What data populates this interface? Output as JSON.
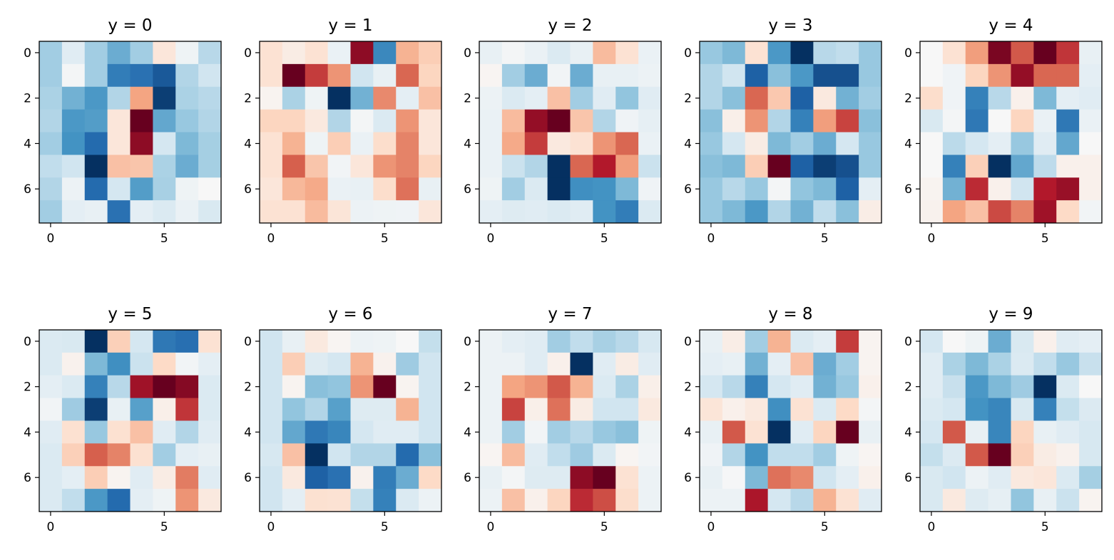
{
  "chart_data": {
    "type": "heatmap",
    "colormap": "RdBu_r",
    "value_range": [
      -1,
      1
    ],
    "xticks": [
      0,
      5
    ],
    "yticks": [
      0,
      2,
      4,
      6
    ],
    "panels": [
      {
        "title": "y = 0",
        "values": [
          [
            -0.35,
            -0.12,
            -0.35,
            -0.5,
            -0.35,
            0.12,
            -0.05,
            -0.28
          ],
          [
            -0.35,
            -0.02,
            -0.35,
            -0.7,
            -0.75,
            -0.85,
            -0.3,
            -0.2
          ],
          [
            -0.32,
            -0.48,
            -0.58,
            -0.3,
            0.4,
            -0.95,
            -0.32,
            -0.28
          ],
          [
            -0.3,
            -0.58,
            -0.56,
            0.12,
            1.0,
            -0.52,
            -0.38,
            -0.3
          ],
          [
            -0.35,
            -0.6,
            -0.78,
            0.12,
            0.9,
            -0.18,
            -0.45,
            -0.34
          ],
          [
            -0.25,
            -0.2,
            -1.0,
            0.3,
            0.28,
            -0.32,
            -0.5,
            -0.34
          ],
          [
            -0.3,
            -0.06,
            -0.78,
            -0.18,
            -0.56,
            -0.33,
            -0.05,
            0.0
          ],
          [
            -0.35,
            -0.1,
            -0.08,
            -0.75,
            -0.1,
            -0.15,
            -0.07,
            -0.16
          ]
        ]
      },
      {
        "title": "y = 1",
        "values": [
          [
            0.15,
            0.08,
            0.15,
            -0.07,
            0.9,
            -0.65,
            0.35,
            0.25
          ],
          [
            0.15,
            1.0,
            0.7,
            0.45,
            -0.2,
            -0.08,
            0.58,
            0.22
          ],
          [
            0.03,
            -0.32,
            -0.05,
            -1.0,
            -0.48,
            0.48,
            -0.1,
            0.3
          ],
          [
            0.22,
            0.22,
            0.1,
            -0.3,
            -0.02,
            -0.15,
            0.45,
            0.12
          ],
          [
            0.15,
            0.35,
            -0.05,
            0.25,
            -0.07,
            0.18,
            0.5,
            0.12
          ],
          [
            0.15,
            0.6,
            0.28,
            -0.03,
            0.12,
            0.45,
            0.5,
            0.22
          ],
          [
            0.12,
            0.33,
            0.38,
            -0.07,
            -0.08,
            0.18,
            0.55,
            -0.08
          ],
          [
            0.15,
            0.15,
            0.32,
            0.13,
            -0.06,
            -0.05,
            -0.04,
            0.12
          ]
        ]
      },
      {
        "title": "y = 2",
        "values": [
          [
            -0.08,
            -0.02,
            -0.07,
            -0.15,
            -0.08,
            0.32,
            0.15,
            -0.07
          ],
          [
            0.02,
            -0.35,
            -0.5,
            -0.03,
            -0.5,
            -0.08,
            -0.08,
            -0.06
          ],
          [
            -0.06,
            -0.15,
            -0.1,
            0.3,
            -0.35,
            -0.12,
            -0.4,
            -0.12
          ],
          [
            -0.07,
            0.32,
            0.88,
            1.0,
            0.28,
            -0.3,
            -0.04,
            -0.09
          ],
          [
            -0.07,
            0.38,
            0.7,
            0.1,
            0.15,
            0.45,
            0.58,
            -0.07
          ],
          [
            -0.07,
            -0.22,
            -0.3,
            -1.0,
            0.58,
            0.8,
            0.42,
            -0.22
          ],
          [
            -0.05,
            -0.35,
            -0.15,
            -1.0,
            -0.62,
            -0.6,
            -0.45,
            -0.04
          ],
          [
            -0.1,
            -0.13,
            -0.12,
            -0.15,
            -0.12,
            -0.6,
            -0.7,
            -0.15
          ]
        ]
      },
      {
        "title": "y = 3",
        "values": [
          [
            -0.38,
            -0.45,
            0.15,
            -0.58,
            -1.0,
            -0.28,
            -0.25,
            -0.38
          ],
          [
            -0.3,
            -0.2,
            -0.82,
            -0.42,
            -0.58,
            -0.88,
            -0.88,
            -0.38
          ],
          [
            -0.3,
            -0.42,
            0.58,
            0.27,
            -0.82,
            0.1,
            -0.48,
            -0.35
          ],
          [
            -0.42,
            0.06,
            0.45,
            -0.3,
            -0.68,
            0.42,
            0.68,
            -0.42
          ],
          [
            -0.38,
            -0.18,
            0.08,
            -0.45,
            -0.35,
            -0.5,
            -0.18,
            -0.38
          ],
          [
            -0.42,
            -0.45,
            0.25,
            1.0,
            -0.82,
            -0.95,
            -0.88,
            -0.38
          ],
          [
            -0.38,
            -0.28,
            -0.38,
            -0.02,
            -0.4,
            -0.45,
            -0.82,
            -0.1
          ],
          [
            -0.38,
            -0.45,
            -0.58,
            -0.3,
            -0.48,
            -0.25,
            -0.42,
            0.07
          ]
        ]
      },
      {
        "title": "y = 4",
        "values": [
          [
            0,
            0.15,
            0.42,
            0.95,
            0.62,
            1.0,
            0.72,
            -0.08
          ],
          [
            0,
            -0.04,
            0.22,
            0.45,
            0.88,
            0.58,
            0.58,
            -0.1
          ],
          [
            0.18,
            -0.04,
            -0.68,
            -0.28,
            0.05,
            -0.45,
            -0.1,
            -0.12
          ],
          [
            -0.16,
            -0.02,
            -0.72,
            0,
            0.22,
            -0.07,
            -0.72,
            -0.07
          ],
          [
            0,
            -0.27,
            -0.18,
            -0.1,
            -0.38,
            -0.12,
            -0.52,
            0
          ],
          [
            0,
            -0.68,
            0.24,
            -1.0,
            -0.52,
            -0.26,
            0.05,
            0.05
          ],
          [
            0.03,
            -0.48,
            0.75,
            0.05,
            -0.2,
            0.8,
            0.87,
            0.05
          ],
          [
            0.04,
            0.4,
            0.3,
            0.66,
            0.5,
            0.85,
            0.2,
            -0.03
          ]
        ]
      },
      {
        "title": "y = 5",
        "values": [
          [
            -0.15,
            -0.16,
            -1.0,
            0.24,
            -0.18,
            -0.72,
            -0.76,
            0.15
          ],
          [
            -0.15,
            0.04,
            -0.45,
            -0.62,
            -0.22,
            0.2,
            -0.03,
            -0.1
          ],
          [
            -0.1,
            -0.15,
            -0.68,
            -0.28,
            0.85,
            1.0,
            0.92,
            -0.15
          ],
          [
            -0.03,
            -0.36,
            -0.95,
            -0.08,
            -0.55,
            0.06,
            0.72,
            -0.15
          ],
          [
            -0.12,
            0.16,
            -0.38,
            0.16,
            0.3,
            -0.12,
            -0.3,
            -0.12
          ],
          [
            -0.15,
            0.24,
            0.6,
            0.5,
            0.16,
            -0.35,
            -0.1,
            -0.08
          ],
          [
            -0.15,
            -0.1,
            0.25,
            0.03,
            -0.12,
            0.08,
            0.52,
            -0.12
          ],
          [
            -0.15,
            -0.25,
            -0.58,
            -0.78,
            -0.1,
            -0.05,
            0.45,
            0.1
          ]
        ]
      },
      {
        "title": "y = 6",
        "values": [
          [
            -0.2,
            -0.08,
            0.1,
            0.02,
            -0.06,
            -0.05,
            0.0,
            -0.24
          ],
          [
            -0.2,
            0.25,
            -0.13,
            -0.18,
            0.35,
            0.04,
            -0.36,
            -0.2
          ],
          [
            -0.2,
            0.03,
            -0.42,
            -0.4,
            0.45,
            1.0,
            0.03,
            -0.2
          ],
          [
            -0.2,
            -0.4,
            -0.3,
            -0.55,
            -0.13,
            -0.13,
            0.35,
            -0.2
          ],
          [
            -0.2,
            -0.52,
            -0.72,
            -0.66,
            -0.18,
            -0.12,
            -0.12,
            -0.2
          ],
          [
            -0.17,
            0.3,
            -1.0,
            -0.2,
            -0.3,
            -0.3,
            -0.78,
            -0.42
          ],
          [
            -0.2,
            0.1,
            -0.82,
            -0.75,
            0.04,
            -0.7,
            -0.5,
            0.2
          ],
          [
            -0.2,
            -0.1,
            0.16,
            0.15,
            -0.24,
            -0.68,
            -0.15,
            -0.06
          ]
        ]
      },
      {
        "title": "y = 7",
        "values": [
          [
            -0.06,
            -0.1,
            -0.12,
            -0.35,
            -0.25,
            -0.33,
            -0.28,
            -0.17
          ],
          [
            -0.06,
            -0.06,
            -0.12,
            0.05,
            -1.0,
            -0.12,
            0.08,
            -0.12
          ],
          [
            -0.06,
            0.4,
            0.45,
            0.62,
            0.35,
            -0.15,
            -0.32,
            0.06
          ],
          [
            -0.06,
            0.68,
            0.06,
            0.55,
            0.08,
            -0.2,
            -0.2,
            0.1
          ],
          [
            -0.06,
            -0.35,
            -0.03,
            -0.35,
            -0.28,
            -0.38,
            -0.42,
            -0.05
          ],
          [
            0.02,
            0.32,
            -0.12,
            -0.25,
            -0.36,
            -0.15,
            0.02,
            -0.03
          ],
          [
            -0.08,
            -0.02,
            -0.13,
            -0.13,
            0.9,
            1.0,
            0.15,
            -0.06
          ],
          [
            -0.06,
            0.3,
            0.05,
            0.22,
            0.75,
            0.65,
            0.18,
            -0.06
          ]
        ]
      },
      {
        "title": "y = 8",
        "values": [
          [
            -0.08,
            0.07,
            -0.35,
            0.35,
            -0.15,
            -0.1,
            0.7,
            0.03
          ],
          [
            -0.1,
            -0.08,
            -0.48,
            -0.1,
            0.3,
            -0.5,
            -0.35,
            0.03
          ],
          [
            -0.18,
            -0.28,
            -0.68,
            -0.18,
            -0.12,
            -0.48,
            -0.38,
            0.05
          ],
          [
            0.13,
            0.05,
            0.1,
            -0.62,
            0.15,
            -0.15,
            0.2,
            -0.02
          ],
          [
            -0.08,
            0.62,
            0.15,
            -1.0,
            -0.12,
            0.22,
            1.0,
            -0.08
          ],
          [
            -0.04,
            -0.3,
            -0.6,
            -0.25,
            -0.25,
            -0.35,
            -0.05,
            0.02
          ],
          [
            -0.08,
            -0.01,
            -0.45,
            0.55,
            0.48,
            -0.2,
            -0.1,
            0.05
          ],
          [
            -0.06,
            -0.06,
            0.82,
            -0.18,
            -0.28,
            0.35,
            0.15,
            -0.12
          ]
        ]
      },
      {
        "title": "y = 9",
        "values": [
          [
            -0.18,
            0,
            -0.05,
            -0.5,
            -0.16,
            0.05,
            -0.12,
            -0.1
          ],
          [
            -0.12,
            -0.32,
            -0.45,
            -0.32,
            -0.15,
            -0.25,
            -0.38,
            -0.23
          ],
          [
            -0.12,
            -0.23,
            -0.58,
            -0.45,
            -0.36,
            -1.0,
            -0.15,
            0
          ],
          [
            -0.15,
            -0.18,
            -0.6,
            -0.66,
            -0.16,
            -0.68,
            -0.24,
            -0.14
          ],
          [
            -0.18,
            0.62,
            -0.08,
            -0.66,
            0.22,
            -0.08,
            -0.12,
            -0.17
          ],
          [
            -0.24,
            -0.14,
            0.62,
            1.0,
            0.24,
            0.08,
            0.04,
            -0.17
          ],
          [
            -0.16,
            -0.2,
            -0.06,
            -0.12,
            0.1,
            0.12,
            -0.15,
            -0.34
          ],
          [
            -0.16,
            0.1,
            -0.13,
            -0.09,
            -0.4,
            -0.08,
            -0.22,
            0.03
          ]
        ]
      }
    ]
  }
}
